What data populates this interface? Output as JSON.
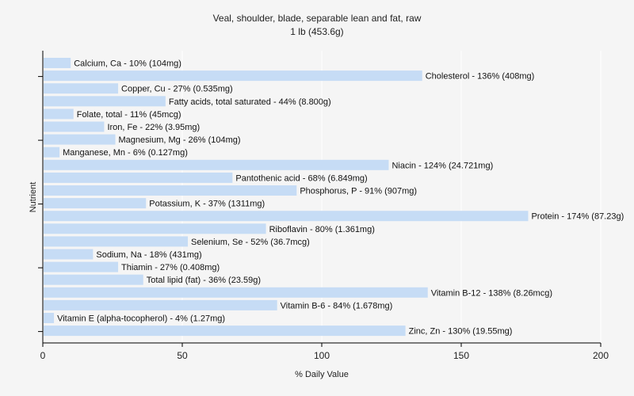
{
  "chart_data": {
    "type": "bar",
    "orientation": "horizontal",
    "title": "Veal, shoulder, blade, separable lean and fat, raw",
    "subtitle": "1 lb (453.6g)",
    "xlabel": "% Daily Value",
    "ylabel": "Nutrient",
    "xlim": [
      0,
      200
    ],
    "xticks": [
      "0",
      "50",
      "100",
      "150",
      "200"
    ],
    "grid": true,
    "bar_color": "#c6dcf5",
    "series": [
      {
        "values": [
          10,
          136,
          27,
          44,
          11,
          22,
          26,
          6,
          124,
          68,
          91,
          37,
          174,
          80,
          52,
          18,
          27,
          36,
          138,
          84,
          4,
          130
        ]
      }
    ],
    "categories": [
      "Calcium, Ca",
      "Cholesterol",
      "Copper, Cu",
      "Fatty acids, total saturated",
      "Folate, total",
      "Iron, Fe",
      "Magnesium, Mg",
      "Manganese, Mn",
      "Niacin",
      "Pantothenic acid",
      "Phosphorus, P",
      "Potassium, K",
      "Protein",
      "Riboflavin",
      "Selenium, Se",
      "Sodium, Na",
      "Thiamin",
      "Total lipid (fat)",
      "Vitamin B-12",
      "Vitamin B-6",
      "Vitamin E (alpha-tocopherol)",
      "Zinc, Zn"
    ],
    "labels": [
      "Calcium, Ca - 10% (104mg)",
      "Cholesterol - 136% (408mg)",
      "Copper, Cu - 27% (0.535mg)",
      "Fatty acids, total saturated - 44% (8.800g)",
      "Folate, total - 11% (45mcg)",
      "Iron, Fe - 22% (3.95mg)",
      "Magnesium, Mg - 26% (104mg)",
      "Manganese, Mn - 6% (0.127mg)",
      "Niacin - 124% (24.721mg)",
      "Pantothenic acid - 68% (6.849mg)",
      "Phosphorus, P - 91% (907mg)",
      "Potassium, K - 37% (1311mg)",
      "Protein - 174% (87.23g)",
      "Riboflavin - 80% (1.361mg)",
      "Selenium, Se - 52% (36.7mcg)",
      "Sodium, Na - 18% (431mg)",
      "Thiamin - 27% (0.408mg)",
      "Total lipid (fat) - 36% (23.59g)",
      "Vitamin B-12 - 138% (8.26mcg)",
      "Vitamin B-6 - 84% (1.678mg)",
      "Vitamin E (alpha-tocopherol) - 4% (1.27mg)",
      "Zinc, Zn - 130% (19.55mg)"
    ]
  }
}
